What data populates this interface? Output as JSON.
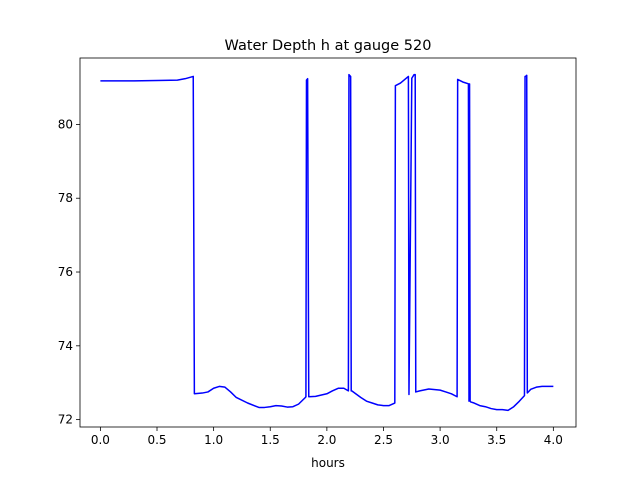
{
  "chart_data": {
    "type": "line",
    "title": "Water Depth h at gauge 520",
    "xlabel": "hours",
    "ylabel": "",
    "xlim": [
      -0.18,
      4.2
    ],
    "ylim": [
      71.8,
      81.8
    ],
    "xticks": [
      0.0,
      0.5,
      1.0,
      1.5,
      2.0,
      2.5,
      3.0,
      3.5,
      4.0
    ],
    "xtick_labels": [
      "0.0",
      "0.5",
      "1.0",
      "1.5",
      "2.0",
      "2.5",
      "3.0",
      "3.5",
      "4.0"
    ],
    "yticks": [
      72,
      74,
      76,
      78,
      80
    ],
    "ytick_labels": [
      "72",
      "74",
      "76",
      "78",
      "80"
    ],
    "grid": false,
    "series": [
      {
        "color": "#0000ff",
        "x": [
          0.0,
          0.3,
          0.5,
          0.68,
          0.75,
          0.82,
          0.83,
          0.9,
          0.95,
          1.0,
          1.05,
          1.1,
          1.15,
          1.2,
          1.3,
          1.4,
          1.45,
          1.5,
          1.55,
          1.6,
          1.65,
          1.7,
          1.75,
          1.81,
          1.815,
          1.82,
          1.825,
          1.83,
          1.84,
          1.9,
          2.0,
          2.05,
          2.1,
          2.15,
          2.19,
          2.195,
          2.21,
          2.215,
          2.22,
          2.3,
          2.35,
          2.4,
          2.45,
          2.5,
          2.55,
          2.6,
          2.605,
          2.65,
          2.7,
          2.72,
          2.725,
          2.75,
          2.77,
          2.78,
          2.785,
          2.82,
          2.9,
          3.0,
          3.05,
          3.1,
          3.15,
          3.155,
          3.2,
          3.25,
          3.255,
          3.26,
          3.265,
          3.27,
          3.3,
          3.35,
          3.4,
          3.45,
          3.5,
          3.55,
          3.6,
          3.65,
          3.7,
          3.745,
          3.75,
          3.755,
          3.765,
          3.77,
          3.8,
          3.85,
          3.9,
          3.95,
          4.0
        ],
        "y": [
          81.18,
          81.18,
          81.19,
          81.2,
          81.24,
          81.3,
          72.7,
          72.72,
          72.75,
          72.85,
          72.9,
          72.88,
          72.75,
          72.6,
          72.45,
          72.33,
          72.33,
          72.35,
          72.38,
          72.37,
          72.34,
          72.35,
          72.42,
          72.6,
          72.62,
          81.2,
          81.22,
          81.24,
          72.62,
          72.63,
          72.7,
          72.78,
          72.85,
          72.85,
          72.78,
          81.35,
          81.3,
          72.78,
          72.78,
          72.6,
          72.5,
          72.45,
          72.4,
          72.38,
          72.38,
          72.45,
          81.05,
          81.12,
          81.25,
          81.3,
          72.68,
          81.25,
          81.35,
          81.35,
          72.75,
          72.78,
          72.83,
          72.8,
          72.75,
          72.7,
          72.62,
          81.22,
          81.15,
          81.1,
          72.5,
          81.1,
          72.5,
          72.48,
          72.45,
          72.38,
          72.35,
          72.3,
          72.27,
          72.27,
          72.25,
          72.35,
          72.5,
          72.65,
          81.3,
          81.3,
          81.33,
          72.72,
          72.82,
          72.88,
          72.9,
          72.9,
          72.9
        ]
      }
    ]
  }
}
